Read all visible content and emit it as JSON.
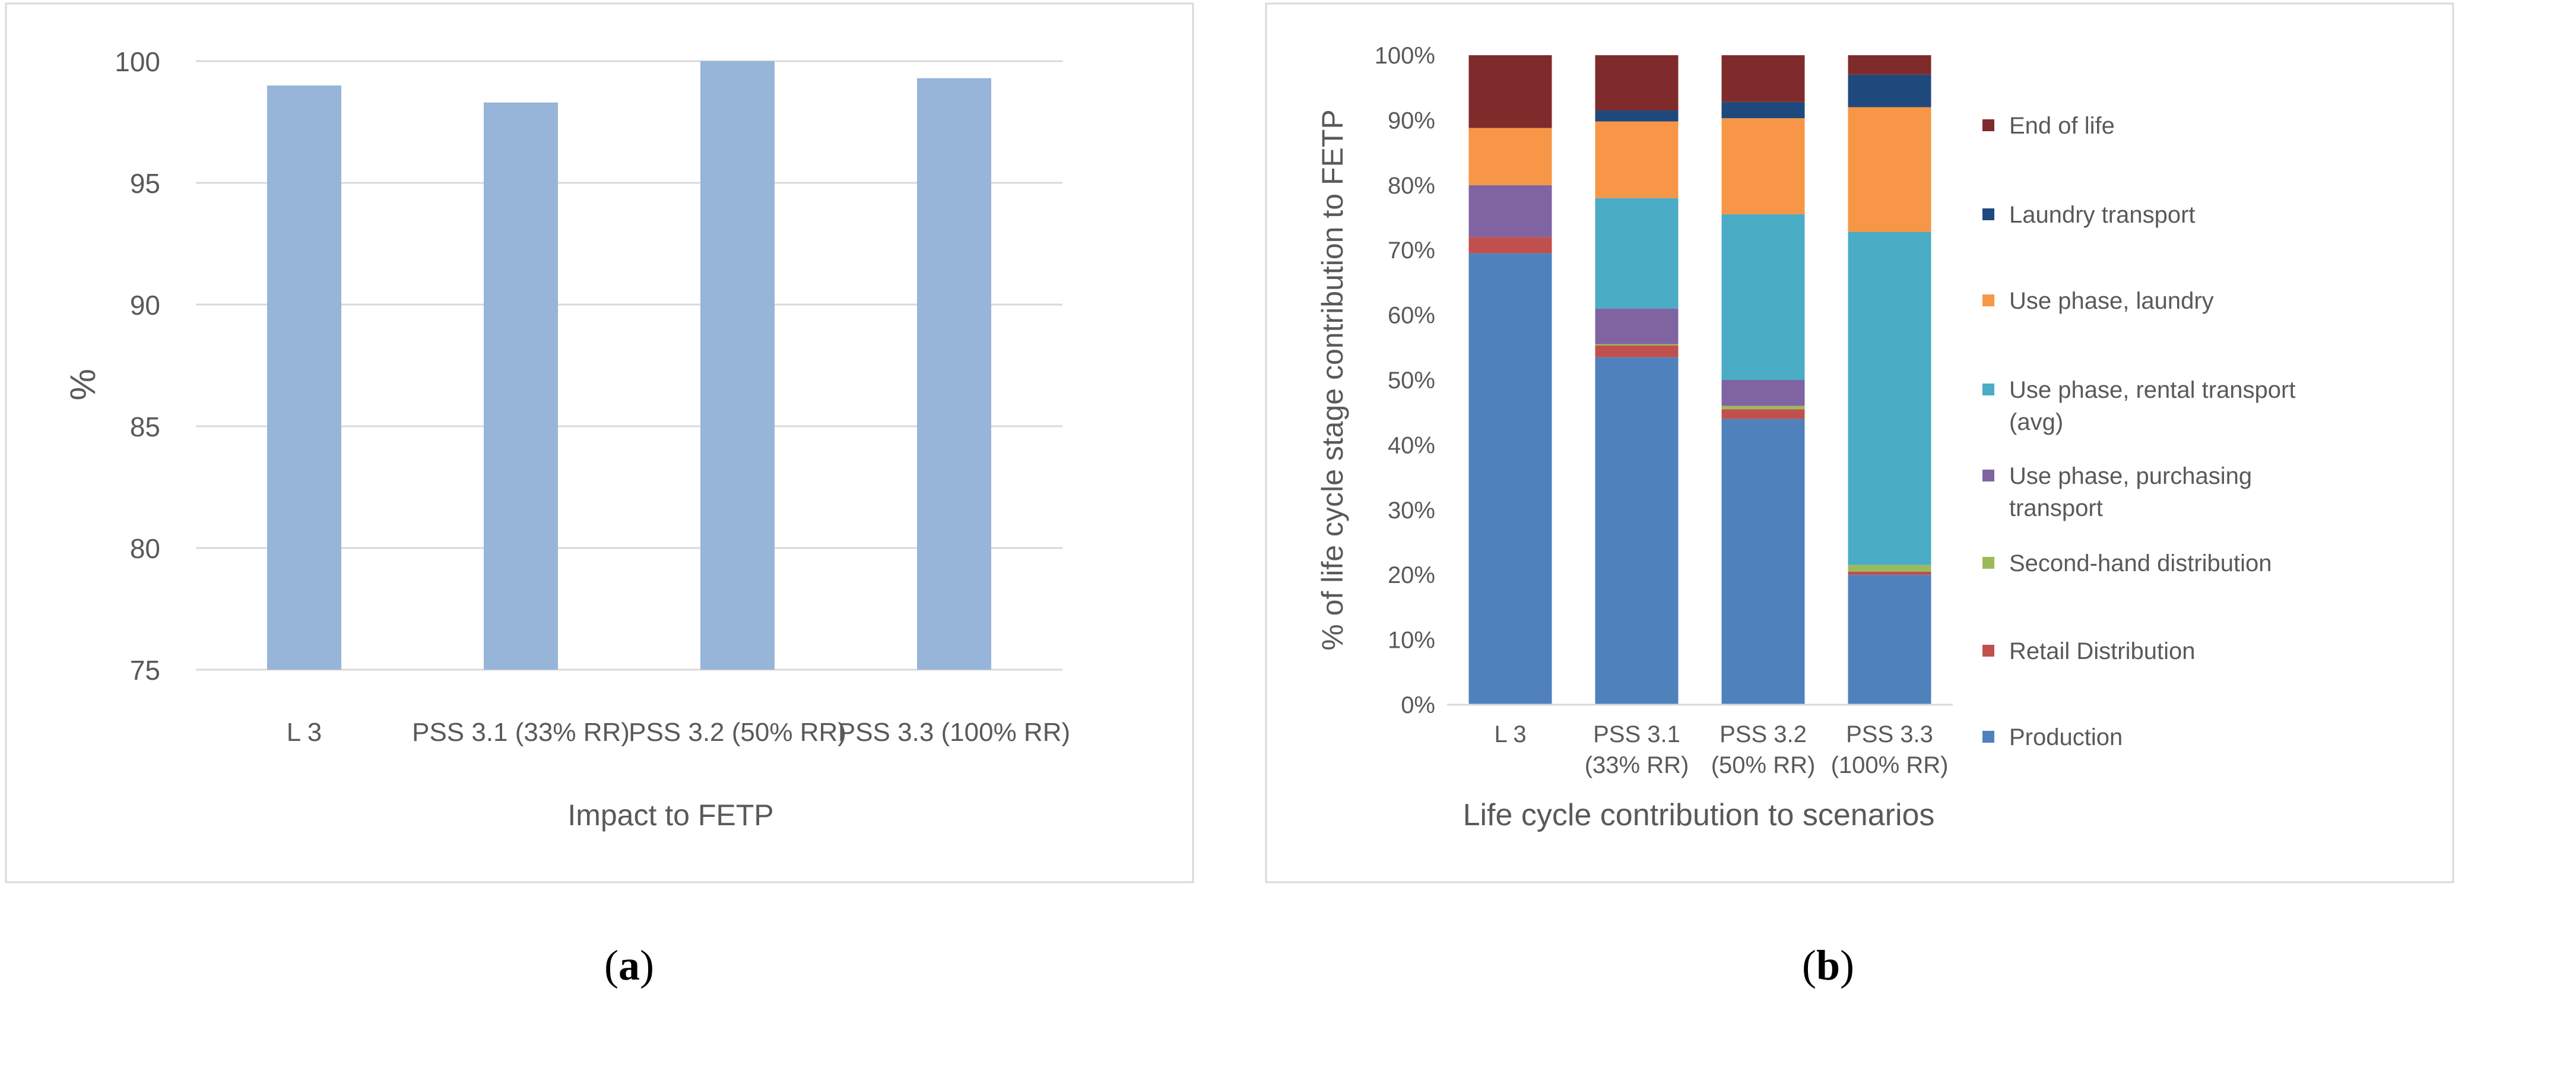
{
  "panel_labels": {
    "a": "a",
    "b": "b"
  },
  "chart_data": [
    {
      "type": "bar",
      "panel": "a",
      "title": "",
      "xlabel": "Impact to FETP",
      "ylabel": "%",
      "ylim": [
        75,
        100
      ],
      "yticks": [
        75,
        80,
        85,
        90,
        95,
        100
      ],
      "ytick_labels": [
        "75",
        "80",
        "85",
        "90",
        "95",
        "100"
      ],
      "grid": true,
      "categories": [
        "L 3",
        "PSS 3.1 (33% RR)",
        "PSS 3.2 (50% RR)",
        "PSS 3.3 (100% RR)"
      ],
      "values": [
        99.0,
        98.3,
        100.0,
        99.3
      ],
      "color": "#97B4D9"
    },
    {
      "type": "bar",
      "stacked": true,
      "panel": "b",
      "title": "",
      "xlabel": "Life cycle contribution to scenarios",
      "ylabel": "% of life cycle stage contribution to FETP",
      "ylim": [
        0,
        100
      ],
      "yticks": [
        0,
        10,
        20,
        30,
        40,
        50,
        60,
        70,
        80,
        90,
        100
      ],
      "ytick_labels": [
        "0%",
        "10%",
        "20%",
        "30%",
        "40%",
        "50%",
        "60%",
        "70%",
        "80%",
        "90%",
        "100%"
      ],
      "grid": false,
      "legend_position": "right",
      "categories": [
        [
          "L 3"
        ],
        [
          "PSS 3.1",
          "(33% RR)"
        ],
        [
          "PSS 3.2",
          "(50% RR)"
        ],
        [
          "PSS 3.3",
          "(100% RR)"
        ]
      ],
      "series": [
        {
          "name": "Production",
          "legend_lines": [
            "Production"
          ],
          "color": "#4F81BD",
          "values": [
            69.5,
            53.5,
            44.0,
            20.0
          ]
        },
        {
          "name": "Retail Distribution",
          "legend_lines": [
            "Retail Distribution"
          ],
          "color": "#C0504D",
          "values": [
            2.5,
            1.8,
            1.5,
            0.5
          ]
        },
        {
          "name": "Second-hand distribution",
          "legend_lines": [
            "Second-hand distribution"
          ],
          "color": "#9BBB59",
          "values": [
            0.0,
            0.2,
            0.5,
            1.0
          ]
        },
        {
          "name": "Use phase, purchasing transport",
          "legend_lines": [
            "Use phase, purchasing",
            "transport"
          ],
          "color": "#8064A2",
          "values": [
            8.0,
            5.5,
            4.0,
            0.0
          ]
        },
        {
          "name": "Use phase, rental transport (avg)",
          "legend_lines": [
            "Use phase, rental transport",
            "(avg)"
          ],
          "color": "#4BACC6",
          "values": [
            0.0,
            17.0,
            25.5,
            51.3
          ]
        },
        {
          "name": "Use phase, laundry",
          "legend_lines": [
            "Use phase, laundry"
          ],
          "color": "#F79646",
          "values": [
            8.8,
            11.8,
            14.8,
            19.2
          ]
        },
        {
          "name": "Laundry transport",
          "legend_lines": [
            "Laundry transport"
          ],
          "color": "#1F497D",
          "values": [
            0.0,
            1.7,
            2.5,
            5.0
          ]
        },
        {
          "name": "End of life",
          "legend_lines": [
            "End of life"
          ],
          "color": "#7F2B2B",
          "values": [
            11.2,
            8.5,
            7.2,
            3.0
          ]
        }
      ]
    }
  ]
}
